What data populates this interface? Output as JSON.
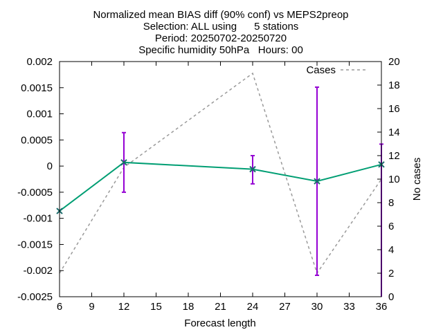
{
  "chart_data": {
    "type": "line",
    "title_lines": [
      "Normalized mean BIAS diff (90% conf) vs MEPS2preop",
      "Selection: ALL using      5 stations",
      "Period: 20250702-20250720",
      "Specific humidity 50hPa   Hours: 00"
    ],
    "xlabel": "Forecast length",
    "ylabel": "",
    "y2label": "No cases",
    "xlim": [
      6,
      36
    ],
    "ylim": [
      -0.0025,
      0.002
    ],
    "y2lim": [
      0,
      20
    ],
    "xticks": [
      "6",
      "9",
      "12",
      "15",
      "18",
      "21",
      "24",
      "27",
      "30",
      "33",
      "36"
    ],
    "yticks": [
      "0.002",
      "0.0015",
      "0.001",
      "0.0005",
      "0",
      "-0.0005",
      "-0.001",
      "-0.0015",
      "-0.002",
      "-0.0025"
    ],
    "y2ticks": [
      "20",
      "18",
      "16",
      "14",
      "12",
      "10",
      "8",
      "6",
      "4",
      "2",
      "0"
    ],
    "grid": false,
    "legend_position": "top-right",
    "colors": {
      "bias_line": "#009e73",
      "errorbar": "#9400d3",
      "marker": "#1a6b6b",
      "cases_line": "#999999"
    },
    "bias": {
      "x": [
        6,
        12,
        24,
        30,
        36
      ],
      "y": [
        -0.00086,
        7e-05,
        -6e-05,
        -0.00029,
        3e-05
      ],
      "err_low": [
        null,
        -0.0005,
        -0.00034,
        -0.00209,
        null
      ],
      "err_high": [
        null,
        0.00064,
        0.0002,
        0.00151,
        0.00042
      ]
    },
    "cases": {
      "name": "Cases",
      "x": [
        6,
        12,
        24,
        30,
        36
      ],
      "y": [
        2,
        11,
        19,
        2,
        10
      ]
    }
  }
}
